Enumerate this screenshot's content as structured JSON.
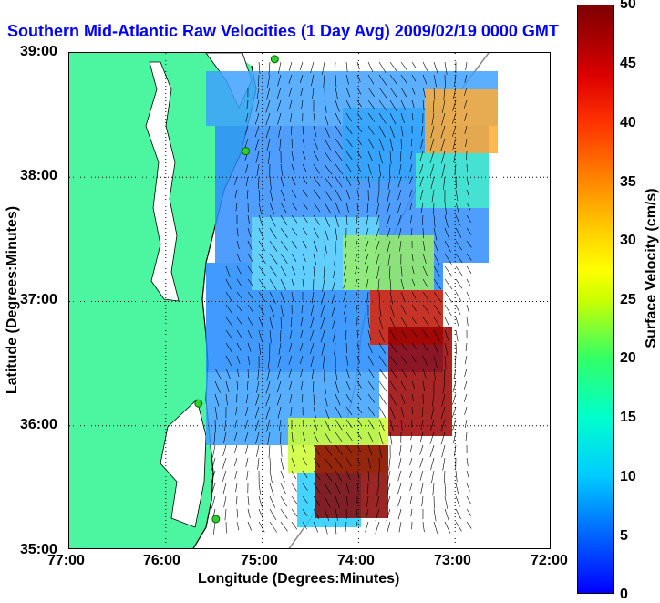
{
  "title": "Southern Mid-Atlantic Raw Velocities (1 Day Avg) 2009/02/19 0000 GMT",
  "axes": {
    "xlabel": "Longitude (Degrees:Minutes)",
    "ylabel": "Latitude (Degrees:Minutes)",
    "x_ticks": [
      "77:00",
      "76:00",
      "75:00",
      "74:00",
      "73:00",
      "72:00"
    ],
    "y_ticks": [
      "39:00",
      "38:00",
      "37:00",
      "36:00",
      "35:00"
    ],
    "grid": "dotted"
  },
  "colorbar": {
    "label": "Surface Velocity (cm/s)",
    "ticks": [
      "50",
      "45",
      "40",
      "35",
      "30",
      "25",
      "20",
      "15",
      "10",
      "5",
      "0"
    ],
    "range": [
      0,
      50
    ]
  },
  "colors": {
    "land": "#4cf5a0",
    "water": "#ffffff",
    "title": "#0000ff",
    "stations": "#33cc33"
  },
  "map": {
    "lon_range": [
      -77,
      -72
    ],
    "lat_range": [
      35,
      39
    ],
    "stations": [
      {
        "lon": -74.87,
        "lat": 38.95
      },
      {
        "lon": -75.17,
        "lat": 38.21
      },
      {
        "lon": -75.66,
        "lat": 36.18
      },
      {
        "lon": -75.48,
        "lat": 35.25
      }
    ]
  }
}
